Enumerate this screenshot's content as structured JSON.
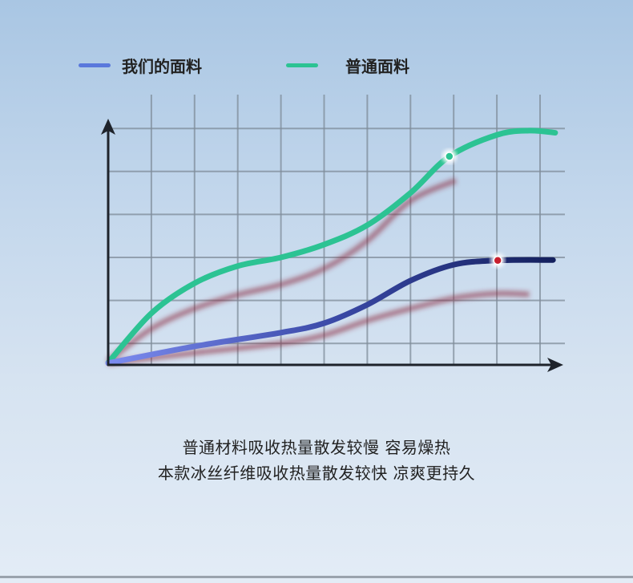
{
  "legend": [
    {
      "label": "我们的面料",
      "color": "#5a78dc"
    },
    {
      "label": "普通面料",
      "color": "#2cc393"
    }
  ],
  "caption": [
    "普通材料吸收热量散发较慢 容易燥热",
    "本款冰丝纤维吸收热量散发较快 凉爽更持久"
  ],
  "chart_data": {
    "type": "line",
    "title": "",
    "xlabel": "",
    "ylabel": "",
    "xlim": [
      0,
      10.5
    ],
    "ylim": [
      0,
      5.6
    ],
    "grid": true,
    "legend_position": "top",
    "series": [
      {
        "name": "普通面料",
        "color": "#2cc393",
        "x": [
          0,
          1,
          2,
          3,
          4,
          5,
          6,
          7,
          7.9,
          9,
          9.75,
          10.35
        ],
        "y": [
          0.05,
          1.2,
          1.9,
          2.3,
          2.5,
          2.8,
          3.25,
          4.0,
          4.85,
          5.35,
          5.45,
          5.4
        ],
        "marker": {
          "x": 7.9,
          "y": 4.85,
          "color": "#2cc393"
        }
      },
      {
        "name": "我们的面料",
        "color": "#1a2a6c",
        "start_color": "#7c8cf0",
        "x": [
          0,
          2,
          4,
          5,
          6,
          7,
          8,
          9,
          10.3
        ],
        "y": [
          0.04,
          0.43,
          0.75,
          0.97,
          1.4,
          1.96,
          2.33,
          2.43,
          2.44
        ],
        "marker": {
          "x": 9.02,
          "y": 2.43,
          "color": "#c8202e"
        }
      },
      {
        "color": "#8a2a3a",
        "shadow": true,
        "x": [
          0,
          1,
          2,
          3,
          4,
          5,
          6,
          7,
          8.05
        ],
        "y": [
          0.09,
          0.84,
          1.31,
          1.63,
          1.87,
          2.24,
          2.89,
          3.82,
          4.29
        ]
      },
      {
        "color": "#8a2a3a",
        "shadow": true,
        "x": [
          0,
          2,
          4,
          5,
          6,
          7,
          8,
          9,
          9.75
        ],
        "y": [
          0.04,
          0.28,
          0.5,
          0.69,
          1.03,
          1.31,
          1.55,
          1.66,
          1.64
        ]
      }
    ]
  }
}
